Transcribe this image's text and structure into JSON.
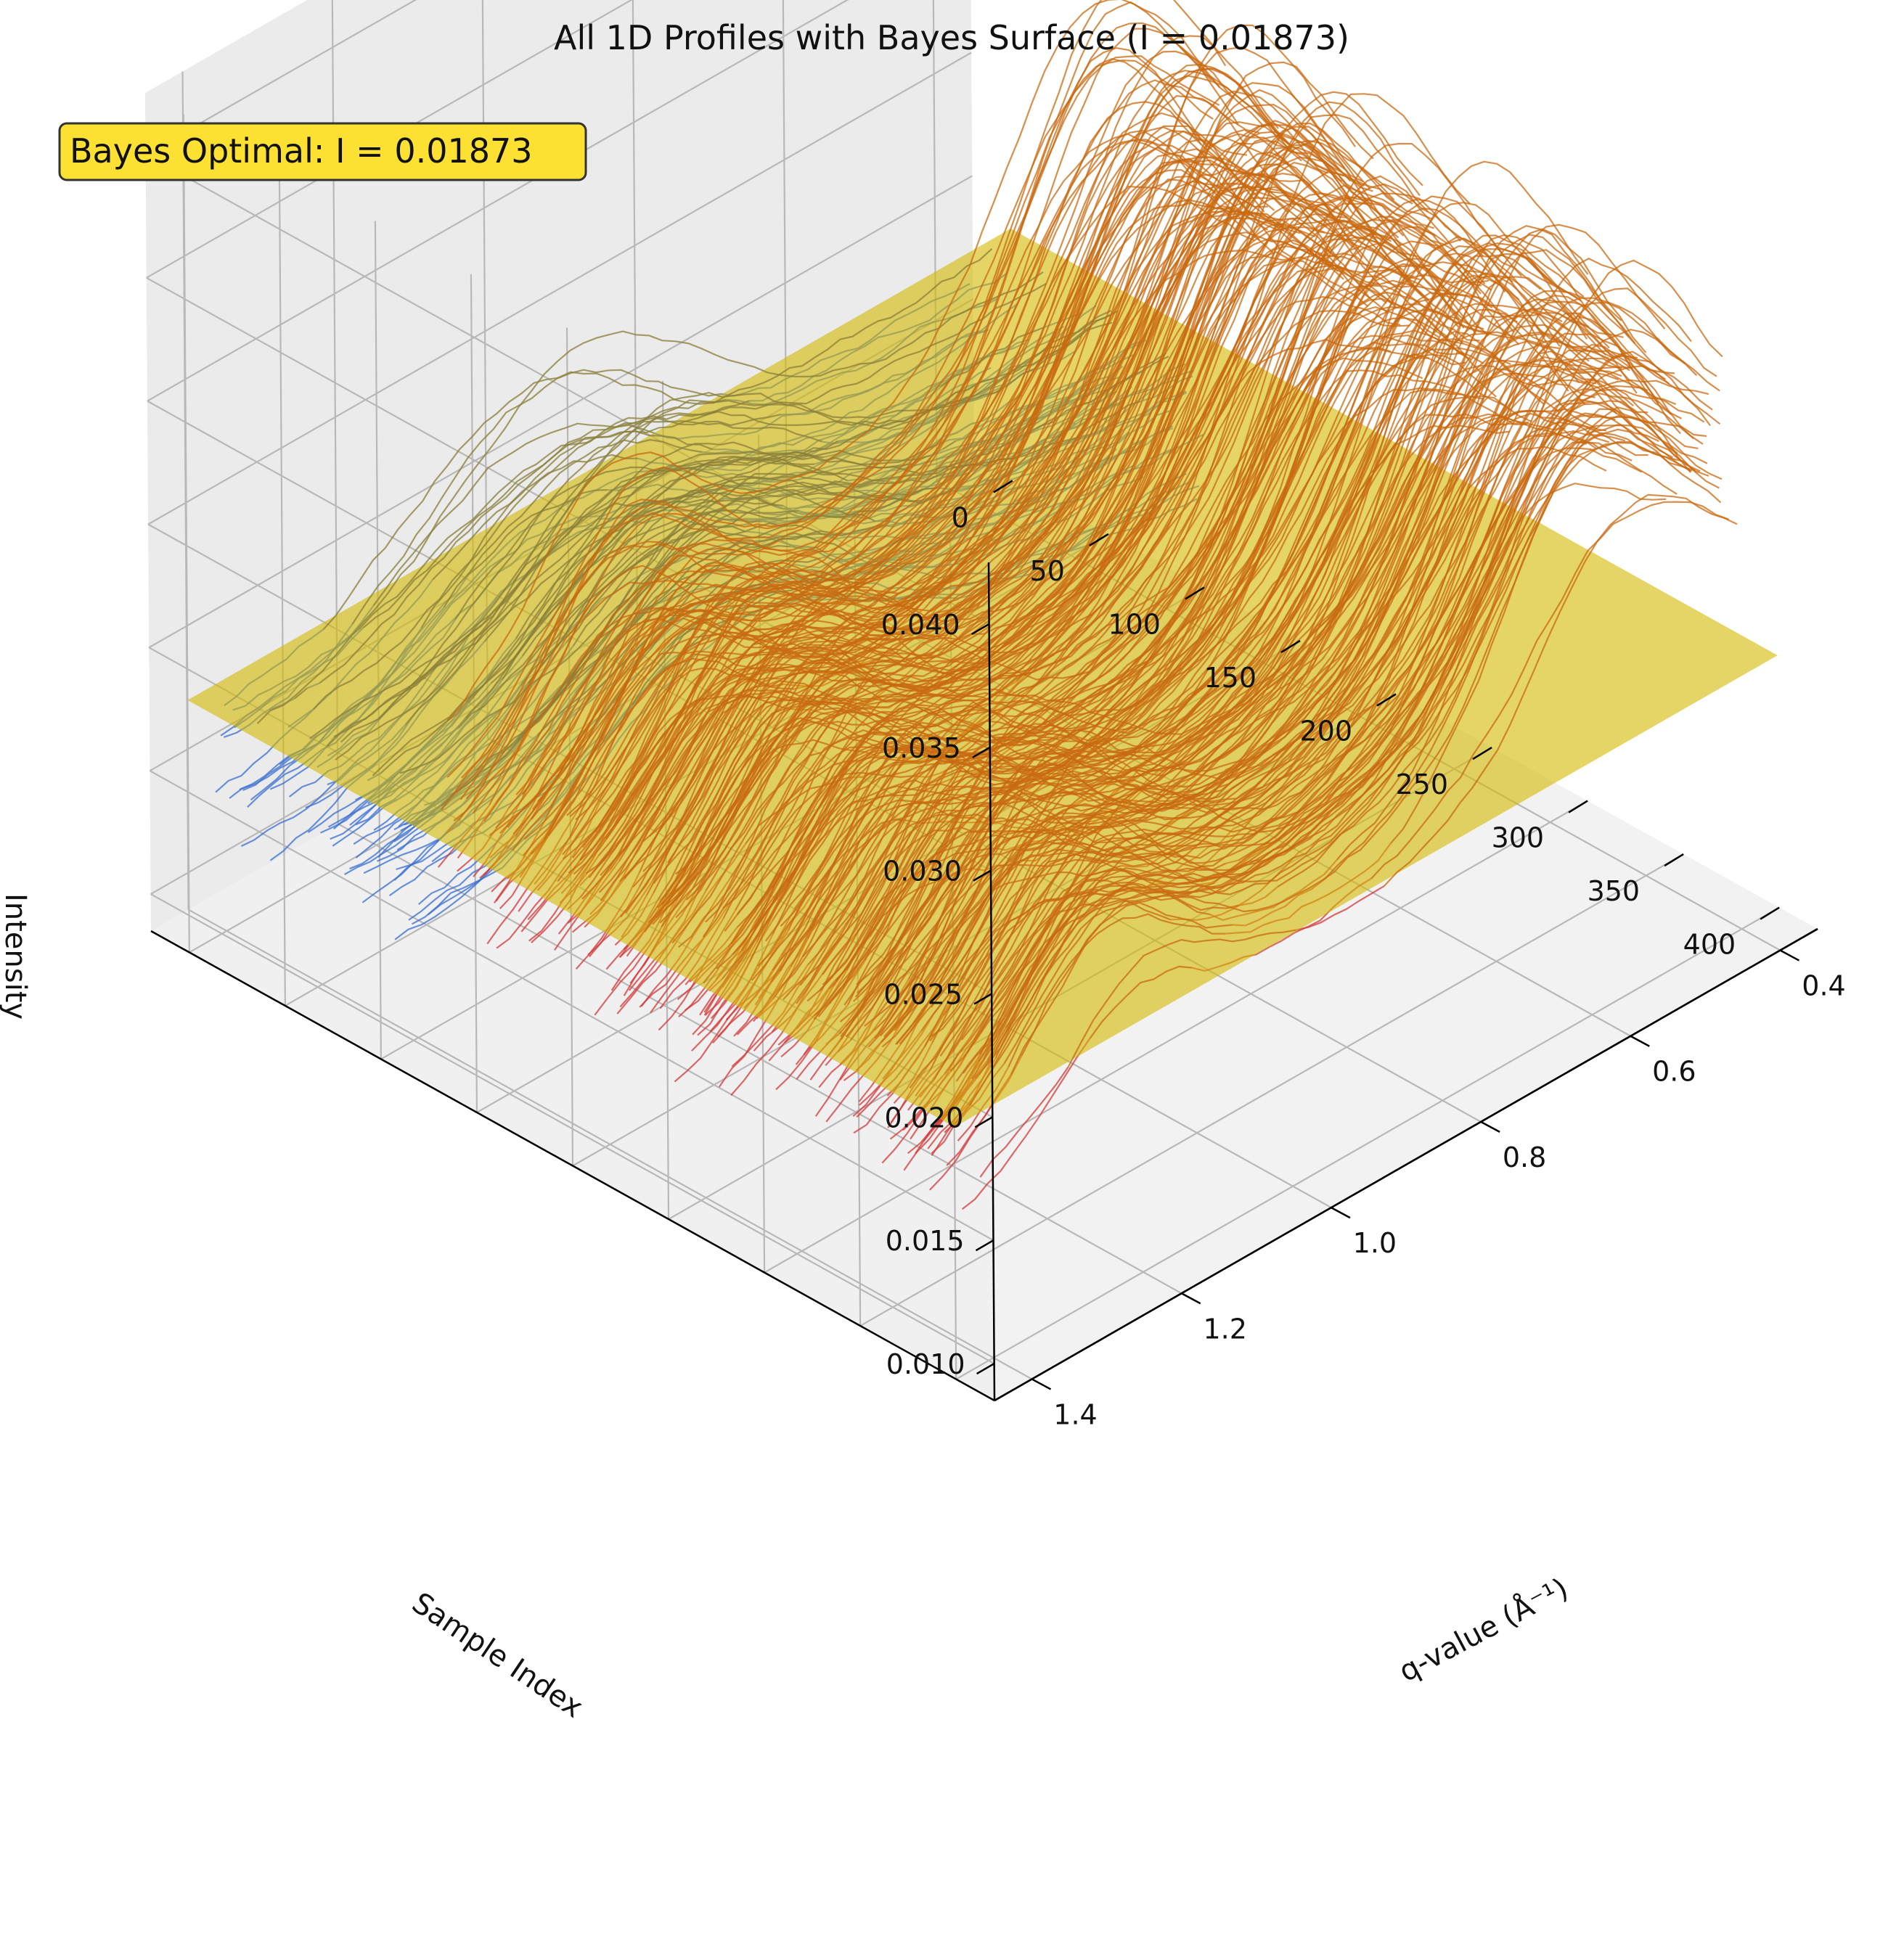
{
  "chart_data": {
    "type": "line",
    "subtype": "3d-line-profiles-with-surface",
    "title": "All 1D Profiles with Bayes Surface (I = 0.01873)",
    "annotation": "Bayes Optimal: I = 0.01873",
    "x_axis": {
      "label": "q-value (Å⁻¹)",
      "ticks": [
        "0.4",
        "0.6",
        "0.8",
        "1.0",
        "1.2",
        "1.4"
      ],
      "range": [
        0.35,
        1.45
      ]
    },
    "y_axis": {
      "label": "Sample Index",
      "ticks": [
        "0",
        "50",
        "100",
        "150",
        "200",
        "250",
        "300",
        "350",
        "400"
      ],
      "range": [
        -20,
        420
      ]
    },
    "z_axis": {
      "label": "Intensity",
      "ticks": [
        "0.010",
        "0.015",
        "0.020",
        "0.025",
        "0.030",
        "0.035",
        "0.040"
      ],
      "range": [
        0.0085,
        0.0425
      ]
    },
    "surface": {
      "z_value": 0.01873,
      "x_range": [
        0.35,
        1.45
      ],
      "y_range": [
        0,
        400
      ],
      "color": "#d4b800",
      "opacity": 0.6
    },
    "series_groups": [
      {
        "class": "below",
        "color": "#3a6fd0",
        "count_shown": 70,
        "sample_index_range": [
          0,
          120
        ],
        "baseline_intensity": 0.0165,
        "peak_q": 1.0,
        "peak_height": 0.006
      },
      {
        "class": "above",
        "color": "#d23a3a",
        "count_shown": 280,
        "sample_index_range": [
          120,
          400
        ],
        "baseline_intensity": 0.024,
        "peak_q_primary": 0.55,
        "peak_q_secondary": 1.2,
        "peak_height": 0.011
      }
    ],
    "grid": true,
    "view": {
      "elevation": 22,
      "azimuth": 45
    }
  },
  "colors": {
    "pane_back": "#f0f0f0",
    "pane_side": "#ebebeb",
    "pane_floor": "#f2f2f2",
    "grid": "#b8b8b8",
    "annotation_bg": "#fde132",
    "annotation_border": "#333333"
  }
}
